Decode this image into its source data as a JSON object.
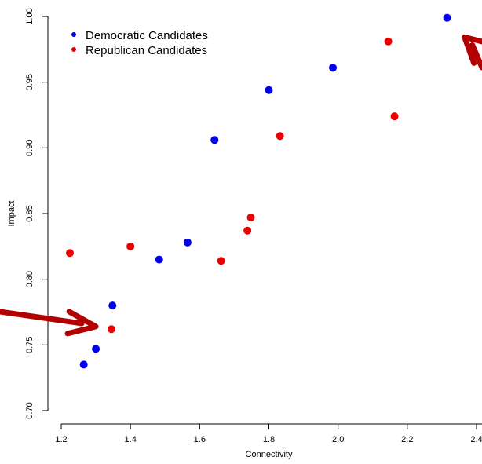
{
  "chart_data": {
    "type": "scatter",
    "title": "",
    "xlabel": "Connectivity",
    "ylabel": "Impact",
    "xlim": [
      1.2,
      2.4
    ],
    "ylim": [
      0.7,
      1.0
    ],
    "xticks": [
      "1.2",
      "1.4",
      "1.6",
      "1.8",
      "2.0",
      "2.2",
      "2.4"
    ],
    "yticks": [
      "0.70",
      "0.75",
      "0.80",
      "0.85",
      "0.90",
      "0.95",
      "1.00"
    ],
    "grid": false,
    "legend_position": "top-left",
    "series": [
      {
        "name": "Democratic Candidates",
        "color": "#0000ee",
        "points": [
          {
            "x": 1.265,
            "y": 0.735
          },
          {
            "x": 1.3,
            "y": 0.747
          },
          {
            "x": 1.348,
            "y": 0.78
          },
          {
            "x": 1.483,
            "y": 0.815
          },
          {
            "x": 1.565,
            "y": 0.828
          },
          {
            "x": 1.643,
            "y": 0.906
          },
          {
            "x": 1.8,
            "y": 0.944
          },
          {
            "x": 1.985,
            "y": 0.961
          },
          {
            "x": 2.315,
            "y": 0.999
          }
        ]
      },
      {
        "name": "Republican Candidates",
        "color": "#ee0000",
        "points": [
          {
            "x": 1.225,
            "y": 0.82
          },
          {
            "x": 1.345,
            "y": 0.762
          },
          {
            "x": 1.4,
            "y": 0.825
          },
          {
            "x": 1.662,
            "y": 0.814
          },
          {
            "x": 1.738,
            "y": 0.837
          },
          {
            "x": 1.748,
            "y": 0.847
          },
          {
            "x": 1.832,
            "y": 0.909
          },
          {
            "x": 2.145,
            "y": 0.981
          },
          {
            "x": 2.163,
            "y": 0.924
          }
        ]
      }
    ],
    "annotations": [
      {
        "type": "arrow",
        "color": "#b30000",
        "points_to": {
          "x": 1.3,
          "y": 0.764
        }
      },
      {
        "type": "arrow",
        "color": "#b30000",
        "points_to": {
          "x": 2.37,
          "y": 0.995
        }
      }
    ]
  }
}
